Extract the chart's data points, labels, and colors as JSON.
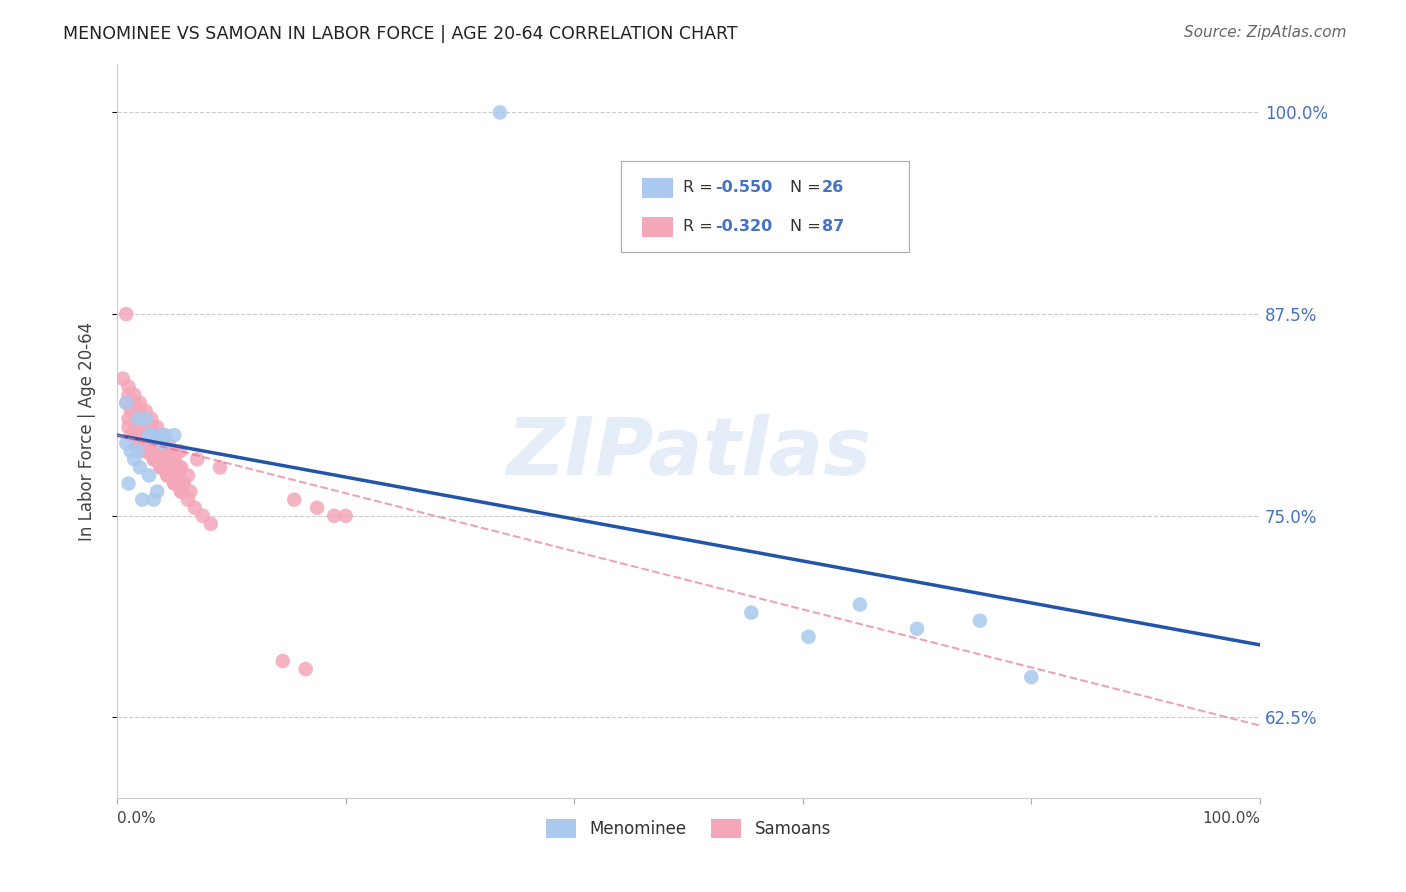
{
  "title": "MENOMINEE VS SAMOAN IN LABOR FORCE | AGE 20-64 CORRELATION CHART",
  "source": "Source: ZipAtlas.com",
  "ylabel": "In Labor Force | Age 20-64",
  "legend_label1": "Menominee",
  "legend_label2": "Samoans",
  "R1_text": "-0.550",
  "N1_text": "26",
  "R2_text": "-0.320",
  "N2_text": "87",
  "y_ticks": [
    0.625,
    0.75,
    0.875,
    1.0
  ],
  "y_tick_labels": [
    "62.5%",
    "75.0%",
    "87.5%",
    "100.0%"
  ],
  "xlim": [
    0.0,
    1.0
  ],
  "ylim": [
    0.575,
    1.03
  ],
  "blue_color": "#aac9ee",
  "pink_color": "#f4a7b9",
  "blue_line_color": "#2255aa",
  "pink_line_color": "#e87090",
  "watermark": "ZIPatlas",
  "menominee_x": [
    0.335,
    0.008,
    0.018,
    0.025,
    0.03,
    0.038,
    0.042,
    0.05,
    0.012,
    0.015,
    0.02,
    0.028,
    0.035,
    0.01,
    0.022,
    0.032,
    0.555,
    0.65,
    0.605,
    0.7,
    0.8,
    0.755,
    0.018,
    0.008,
    0.028,
    0.04
  ],
  "menominee_y": [
    1.0,
    0.82,
    0.81,
    0.81,
    0.8,
    0.8,
    0.8,
    0.8,
    0.79,
    0.785,
    0.78,
    0.775,
    0.765,
    0.77,
    0.76,
    0.76,
    0.69,
    0.695,
    0.675,
    0.68,
    0.65,
    0.685,
    0.79,
    0.795,
    0.8,
    0.795
  ],
  "samoan_x": [
    0.005,
    0.01,
    0.015,
    0.02,
    0.025,
    0.03,
    0.035,
    0.04,
    0.045,
    0.05,
    0.01,
    0.015,
    0.02,
    0.025,
    0.03,
    0.035,
    0.04,
    0.045,
    0.05,
    0.055,
    0.012,
    0.018,
    0.022,
    0.028,
    0.033,
    0.038,
    0.043,
    0.048,
    0.053,
    0.058,
    0.008,
    0.014,
    0.02,
    0.026,
    0.032,
    0.038,
    0.044,
    0.05,
    0.056,
    0.062,
    0.01,
    0.016,
    0.022,
    0.028,
    0.034,
    0.04,
    0.046,
    0.052,
    0.058,
    0.064,
    0.012,
    0.018,
    0.025,
    0.032,
    0.038,
    0.044,
    0.05,
    0.056,
    0.01,
    0.016,
    0.022,
    0.028,
    0.034,
    0.04,
    0.046,
    0.052,
    0.018,
    0.025,
    0.032,
    0.038,
    0.044,
    0.05,
    0.056,
    0.062,
    0.068,
    0.075,
    0.082,
    0.155,
    0.175,
    0.19,
    0.145,
    0.165,
    0.2,
    0.008,
    0.055,
    0.07,
    0.09
  ],
  "samoan_y": [
    0.835,
    0.83,
    0.825,
    0.82,
    0.815,
    0.81,
    0.805,
    0.8,
    0.795,
    0.79,
    0.825,
    0.82,
    0.815,
    0.81,
    0.805,
    0.8,
    0.795,
    0.79,
    0.785,
    0.78,
    0.815,
    0.81,
    0.805,
    0.8,
    0.795,
    0.79,
    0.785,
    0.78,
    0.775,
    0.77,
    0.82,
    0.815,
    0.81,
    0.805,
    0.8,
    0.795,
    0.79,
    0.785,
    0.78,
    0.775,
    0.81,
    0.805,
    0.8,
    0.795,
    0.79,
    0.785,
    0.78,
    0.775,
    0.77,
    0.765,
    0.8,
    0.795,
    0.79,
    0.785,
    0.78,
    0.775,
    0.77,
    0.765,
    0.805,
    0.8,
    0.795,
    0.79,
    0.785,
    0.78,
    0.775,
    0.77,
    0.795,
    0.79,
    0.785,
    0.78,
    0.775,
    0.77,
    0.765,
    0.76,
    0.755,
    0.75,
    0.745,
    0.76,
    0.755,
    0.75,
    0.66,
    0.655,
    0.75,
    0.875,
    0.79,
    0.785,
    0.78
  ],
  "blue_line_x0": 0.0,
  "blue_line_y0": 0.8,
  "blue_line_x1": 1.0,
  "blue_line_y1": 0.67,
  "pink_line_x0": 0.0,
  "pink_line_y0": 0.8,
  "pink_line_x1": 0.5,
  "pink_line_y1": 0.71
}
